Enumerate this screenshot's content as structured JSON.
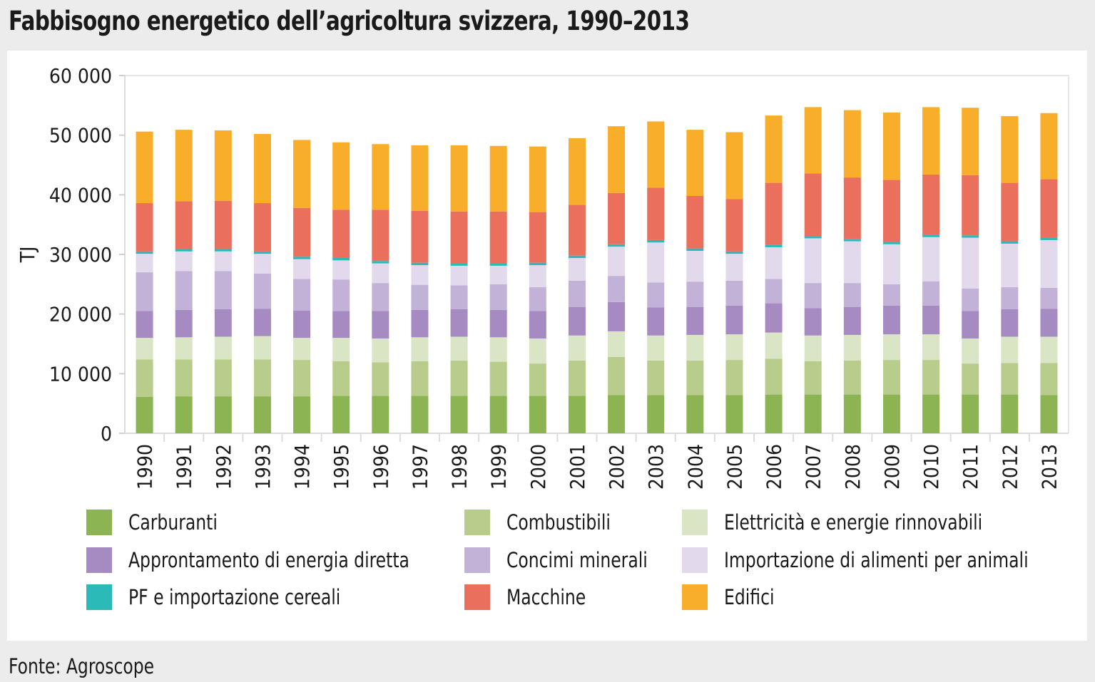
{
  "title": "Fabbisogno energetico dell’agricoltura svizzera, 1990–2013",
  "source": "Fonte: Agroscope",
  "chart_data": {
    "type": "bar",
    "stacked": true,
    "title": "Fabbisogno energetico dell’agricoltura svizzera, 1990–2013",
    "xlabel": "",
    "ylabel": "TJ",
    "ylim": [
      0,
      60000
    ],
    "yticks": [
      0,
      10000,
      20000,
      30000,
      40000,
      50000,
      60000
    ],
    "ytick_labels": [
      "0",
      "10 000",
      "20 000",
      "30 000",
      "40 000",
      "50 000",
      "60 000"
    ],
    "grid": false,
    "legend_position": "bottom",
    "categories": [
      "1990",
      "1991",
      "1992",
      "1993",
      "1994",
      "1995",
      "1996",
      "1997",
      "1998",
      "1999",
      "2000",
      "2001",
      "2002",
      "2003",
      "2004",
      "2005",
      "2006",
      "2007",
      "2008",
      "2009",
      "2010",
      "2011",
      "2012",
      "2013"
    ],
    "series": [
      {
        "name": "Carburanti",
        "color": "#8db452",
        "values": [
          6100,
          6200,
          6200,
          6200,
          6200,
          6300,
          6300,
          6300,
          6300,
          6300,
          6300,
          6300,
          6400,
          6400,
          6400,
          6400,
          6500,
          6500,
          6500,
          6500,
          6500,
          6500,
          6500,
          6400
        ]
      },
      {
        "name": "Combustibili",
        "color": "#b8cc8b",
        "values": [
          6300,
          6200,
          6200,
          6200,
          6100,
          5800,
          5600,
          5800,
          5900,
          5700,
          5400,
          5900,
          6400,
          5800,
          5800,
          5900,
          6000,
          5600,
          5700,
          5800,
          5800,
          5200,
          5300,
          5400
        ]
      },
      {
        "name": "Elettricità e energie rinnovabili",
        "color": "#d9e5c4",
        "values": [
          3600,
          3700,
          3800,
          3900,
          3700,
          3900,
          4000,
          4000,
          4000,
          4100,
          4200,
          4200,
          4300,
          4200,
          4300,
          4300,
          4400,
          4300,
          4300,
          4300,
          4300,
          4200,
          4400,
          4400
        ]
      },
      {
        "name": "Approntamento di energia diretta",
        "color": "#a68bc3",
        "values": [
          4500,
          4600,
          4600,
          4600,
          4600,
          4500,
          4600,
          4600,
          4600,
          4600,
          4600,
          4800,
          4900,
          4700,
          4700,
          4800,
          4900,
          4600,
          4700,
          4800,
          4800,
          4600,
          4600,
          4700
        ]
      },
      {
        "name": "Concimi minerali",
        "color": "#c3b2d8",
        "values": [
          6500,
          6500,
          6400,
          5900,
          5300,
          5300,
          4700,
          4200,
          4000,
          4300,
          4000,
          4400,
          4400,
          4200,
          4200,
          4200,
          4100,
          4200,
          4000,
          3600,
          4100,
          3800,
          3700,
          3500
        ]
      },
      {
        "name": "Importazione di alimenti per animali",
        "color": "#e3d9ec",
        "values": [
          3100,
          3300,
          3300,
          3300,
          3300,
          3200,
          3300,
          3300,
          3300,
          3100,
          3700,
          3800,
          4900,
          6700,
          5200,
          4500,
          5300,
          7500,
          7000,
          6700,
          7400,
          8500,
          7300,
          8000
        ]
      },
      {
        "name": "PF e importazione cereali",
        "color": "#2bbab8",
        "values": [
          400,
          400,
          400,
          400,
          400,
          400,
          400,
          400,
          400,
          400,
          400,
          400,
          400,
          400,
          400,
          400,
          400,
          400,
          400,
          400,
          400,
          400,
          400,
          400
        ]
      },
      {
        "name": "Macchine",
        "color": "#ea6f5c",
        "values": [
          8100,
          8000,
          8100,
          8100,
          8200,
          8100,
          8600,
          8700,
          8700,
          8700,
          8500,
          8500,
          8600,
          8800,
          8800,
          8800,
          10400,
          10500,
          10300,
          10400,
          10100,
          10100,
          9800,
          9800
        ]
      },
      {
        "name": "Edifici",
        "color": "#f8ae2a",
        "values": [
          12000,
          12000,
          11800,
          11600,
          11400,
          11300,
          11000,
          11000,
          11100,
          11000,
          11000,
          11200,
          11200,
          11100,
          11100,
          11200,
          11300,
          11100,
          11300,
          11300,
          11300,
          11300,
          11200,
          11100
        ]
      }
    ]
  }
}
